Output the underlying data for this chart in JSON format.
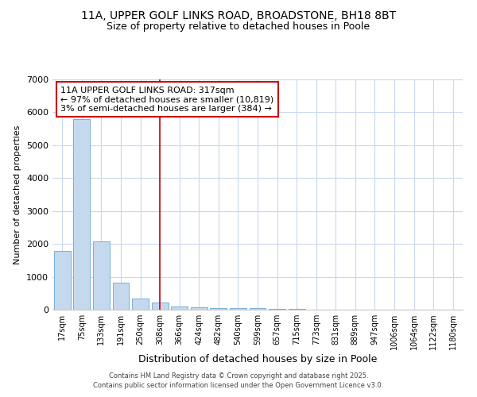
{
  "title1": "11A, UPPER GOLF LINKS ROAD, BROADSTONE, BH18 8BT",
  "title2": "Size of property relative to detached houses in Poole",
  "xlabel": "Distribution of detached houses by size in Poole",
  "ylabel": "Number of detached properties",
  "categories": [
    "17sqm",
    "75sqm",
    "133sqm",
    "191sqm",
    "250sqm",
    "308sqm",
    "366sqm",
    "424sqm",
    "482sqm",
    "540sqm",
    "599sqm",
    "657sqm",
    "715sqm",
    "773sqm",
    "831sqm",
    "889sqm",
    "947sqm",
    "1006sqm",
    "1064sqm",
    "1122sqm",
    "1180sqm"
  ],
  "values": [
    1780,
    5800,
    2080,
    830,
    350,
    210,
    100,
    80,
    60,
    50,
    50,
    30,
    30,
    0,
    0,
    0,
    0,
    0,
    0,
    0,
    0
  ],
  "bar_color": "#c5d9ee",
  "bar_edge_color": "#7aafd4",
  "vline_x_index": 5,
  "vline_color": "#cc0000",
  "ylim": [
    0,
    7000
  ],
  "yticks": [
    0,
    1000,
    2000,
    3000,
    4000,
    5000,
    6000,
    7000
  ],
  "annotation_text": "11A UPPER GOLF LINKS ROAD: 317sqm\n← 97% of detached houses are smaller (10,819)\n3% of semi-detached houses are larger (384) →",
  "annotation_box_color": "#ffffff",
  "annotation_box_edge": "#cc0000",
  "footer1": "Contains HM Land Registry data © Crown copyright and database right 2025.",
  "footer2": "Contains public sector information licensed under the Open Government Licence v3.0.",
  "bg_color": "#ffffff",
  "plot_bg_color": "#ffffff",
  "grid_color": "#c8d8ee",
  "title1_fontsize": 10,
  "title2_fontsize": 9,
  "xlabel_fontsize": 9,
  "ylabel_fontsize": 8,
  "xtick_fontsize": 7,
  "ytick_fontsize": 8,
  "annotation_fontsize": 8,
  "footer_fontsize": 6
}
